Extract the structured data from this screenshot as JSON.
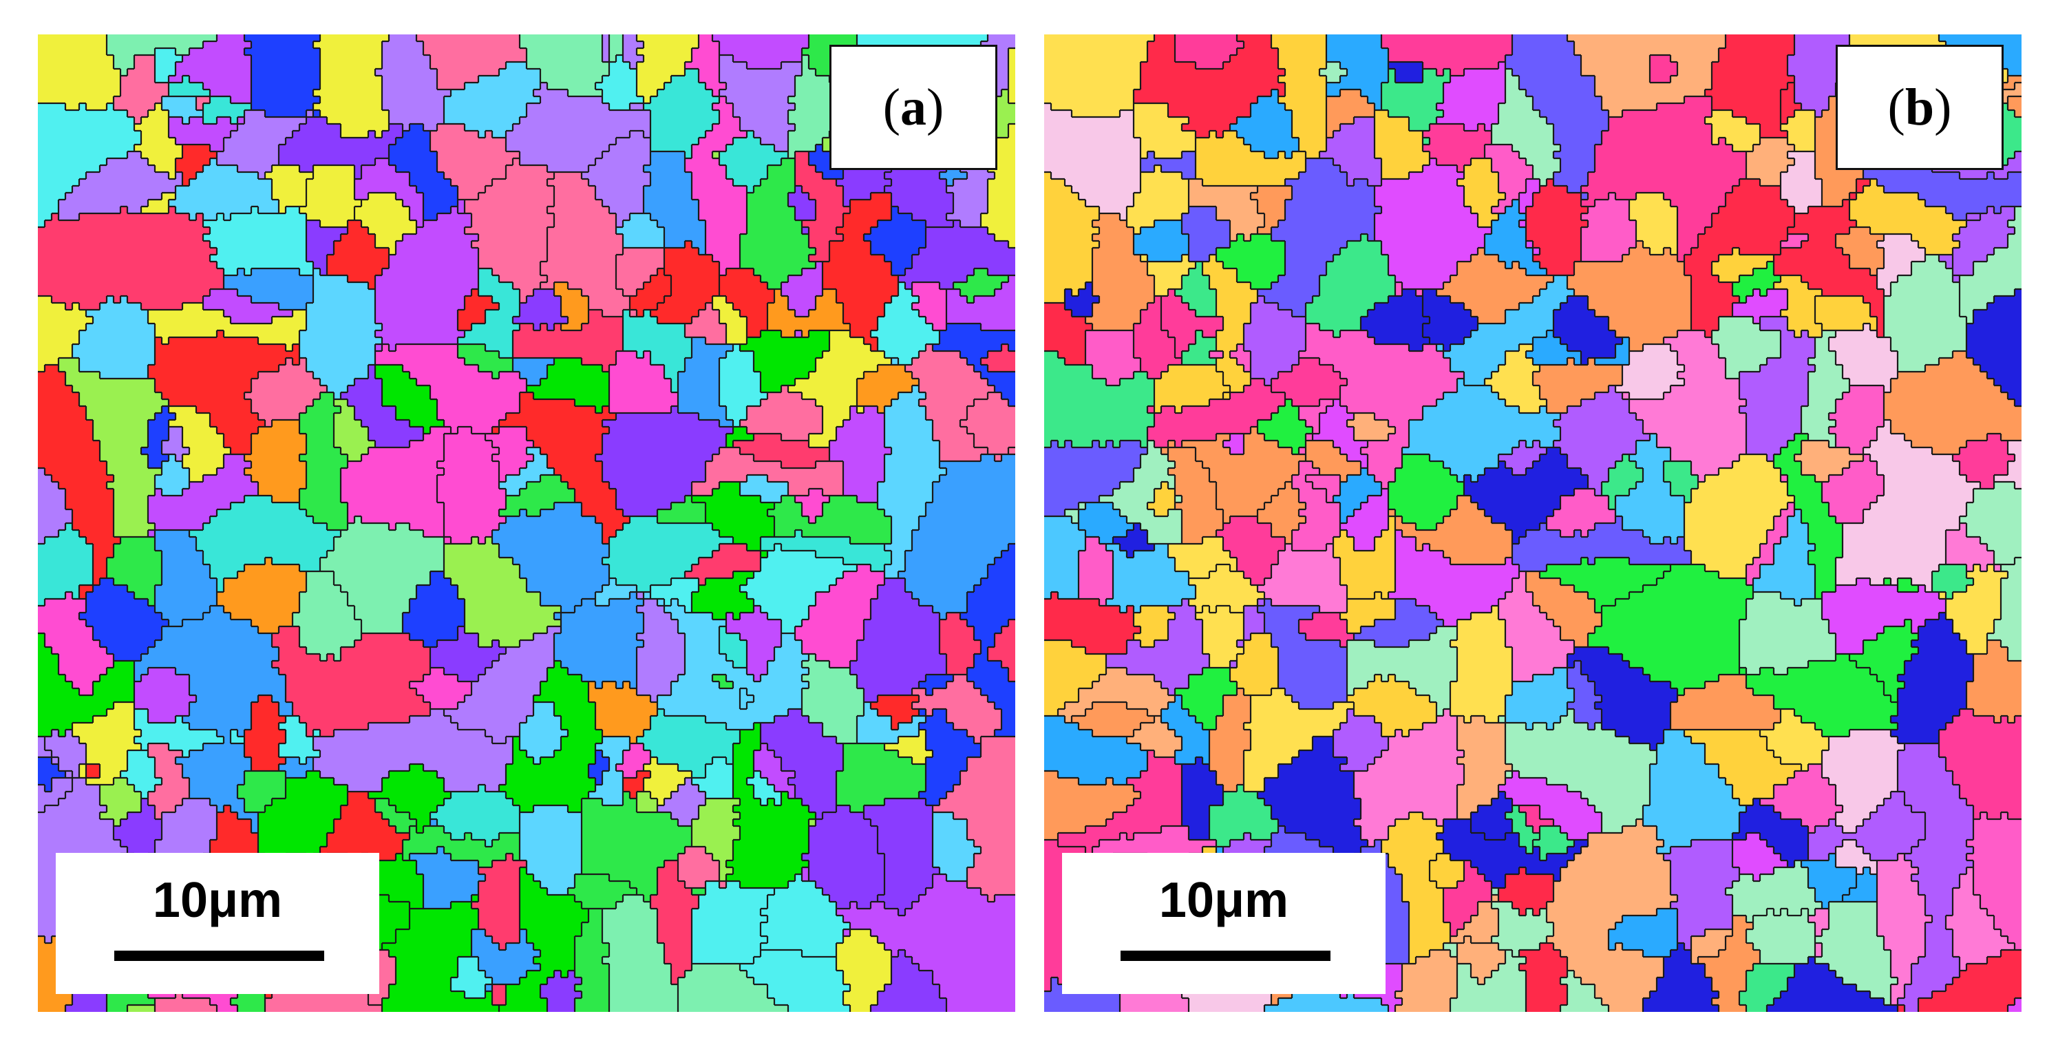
{
  "panels": [
    {
      "id": "a",
      "label_open": "(",
      "label_letter": "a",
      "label_close": ")",
      "scale_text": "10μm",
      "seed": 7,
      "dominant_colors": [
        "#00e600",
        "#2ee84a",
        "#ff3c6e",
        "#ff2a2a",
        "#39e6d8",
        "#3aa0ff",
        "#8a3cff",
        "#c24cff",
        "#ff4cd2",
        "#7df0b0",
        "#f0f03c",
        "#ff9a1e",
        "#1e40ff",
        "#50f0f0",
        "#9af050",
        "#ff6ea0",
        "#5cd6ff",
        "#b07cff"
      ]
    },
    {
      "id": "b",
      "label_open": "(",
      "label_letter": "b",
      "label_close": ")",
      "scale_text": "10μm",
      "seed": 19,
      "dominant_colors": [
        "#ff5cc8",
        "#ff3c9a",
        "#ff7ad6",
        "#e04cff",
        "#b05cff",
        "#4cc8ff",
        "#2aaaff",
        "#3ce88a",
        "#20f040",
        "#ffb07a",
        "#ffe050",
        "#ffd23c",
        "#ff9a5a",
        "#2020e0",
        "#6a5cff",
        "#ff2a4a",
        "#f8c8e8",
        "#a0f0c0"
      ]
    }
  ]
}
